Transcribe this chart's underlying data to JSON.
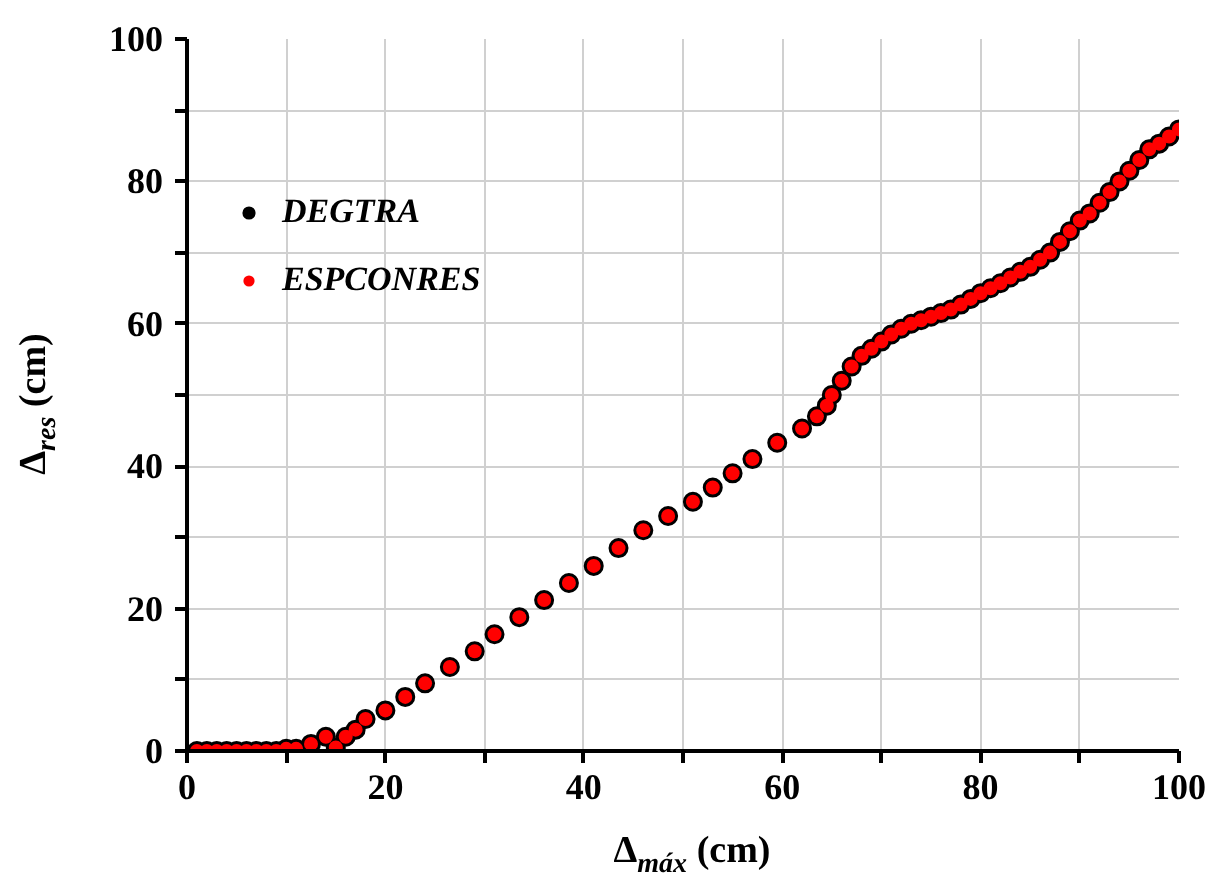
{
  "chart_data": {
    "type": "scatter",
    "xlabel": "Δ$_{máx}$ (cm)",
    "ylabel": "Δ$_{res}$ (cm)",
    "x": [
      1,
      2,
      3,
      4,
      5,
      6,
      7,
      8,
      9,
      10,
      11,
      12.5,
      14,
      15,
      16,
      17,
      18,
      20,
      22,
      24,
      26.5,
      29,
      31,
      33.5,
      36,
      38.5,
      41,
      43.5,
      46,
      48.5,
      51,
      53,
      55,
      57,
      59.5,
      62,
      63.5,
      64.5,
      65,
      66,
      67,
      68,
      69,
      70,
      71,
      72,
      73,
      74,
      75,
      76,
      77,
      78,
      79,
      80,
      81,
      82,
      83,
      84,
      85,
      86,
      87,
      88,
      89,
      90,
      91,
      92,
      93,
      94,
      95,
      96,
      97,
      98,
      99,
      100
    ],
    "series": [
      {
        "name": "DEGTRA",
        "color": "#000000",
        "values": [
          0,
          0,
          0,
          0,
          0,
          0,
          0,
          0,
          0,
          0.3,
          0.3,
          1,
          2,
          0.5,
          2,
          3,
          4.5,
          5.7,
          7.6,
          9.5,
          11.8,
          14,
          16.4,
          18.8,
          21.2,
          23.6,
          26,
          28.5,
          31,
          33,
          35,
          37,
          39,
          41,
          43.3,
          45.3,
          47,
          48.5,
          50,
          52,
          54,
          55.5,
          56.5,
          57.5,
          58.5,
          59.3,
          60,
          60.5,
          61,
          61.5,
          62,
          62.7,
          63.5,
          64.3,
          65,
          65.7,
          66.5,
          67.3,
          68,
          69,
          70,
          71.5,
          73,
          74.5,
          75.5,
          77,
          78.5,
          80,
          81.5,
          83,
          84.5,
          85.3,
          86.3,
          87.3
        ]
      },
      {
        "name": "ESPCONRES",
        "color": "#ff0000",
        "values": [
          0,
          0,
          0,
          0,
          0,
          0,
          0,
          0,
          0,
          0.3,
          0.3,
          1,
          2,
          0.5,
          2,
          3,
          4.5,
          5.7,
          7.6,
          9.5,
          11.8,
          14,
          16.4,
          18.8,
          21.2,
          23.6,
          26,
          28.5,
          31,
          33,
          35,
          37,
          39,
          41,
          43.3,
          45.3,
          47,
          48.5,
          50,
          52,
          54,
          55.5,
          56.5,
          57.5,
          58.5,
          59.3,
          60,
          60.5,
          61,
          61.5,
          62,
          62.7,
          63.5,
          64.3,
          65,
          65.7,
          66.5,
          67.3,
          68,
          69,
          70,
          71.5,
          73,
          74.5,
          75.5,
          77,
          78.5,
          80,
          81.5,
          83,
          84.5,
          85.3,
          86.3,
          87.3
        ]
      }
    ],
    "xlim": [
      0,
      100
    ],
    "ylim": [
      0,
      100
    ],
    "xticks": [
      0,
      {
        "value": 10,
        "label": null
      },
      20,
      {
        "value": 30,
        "label": null
      },
      40,
      {
        "value": 50,
        "label": null
      },
      60,
      {
        "value": 70,
        "label": null
      },
      80,
      {
        "value": 90,
        "label": null
      },
      100
    ],
    "yticks": [
      0,
      {
        "value": 10,
        "label": null
      },
      20,
      {
        "value": 30,
        "label": null
      },
      40,
      {
        "value": 50,
        "label": null
      },
      60,
      {
        "value": 70,
        "label": null
      },
      80,
      {
        "value": 90,
        "label": null
      },
      100
    ],
    "grid": true,
    "legend": "top left",
    "marker": "circle"
  }
}
